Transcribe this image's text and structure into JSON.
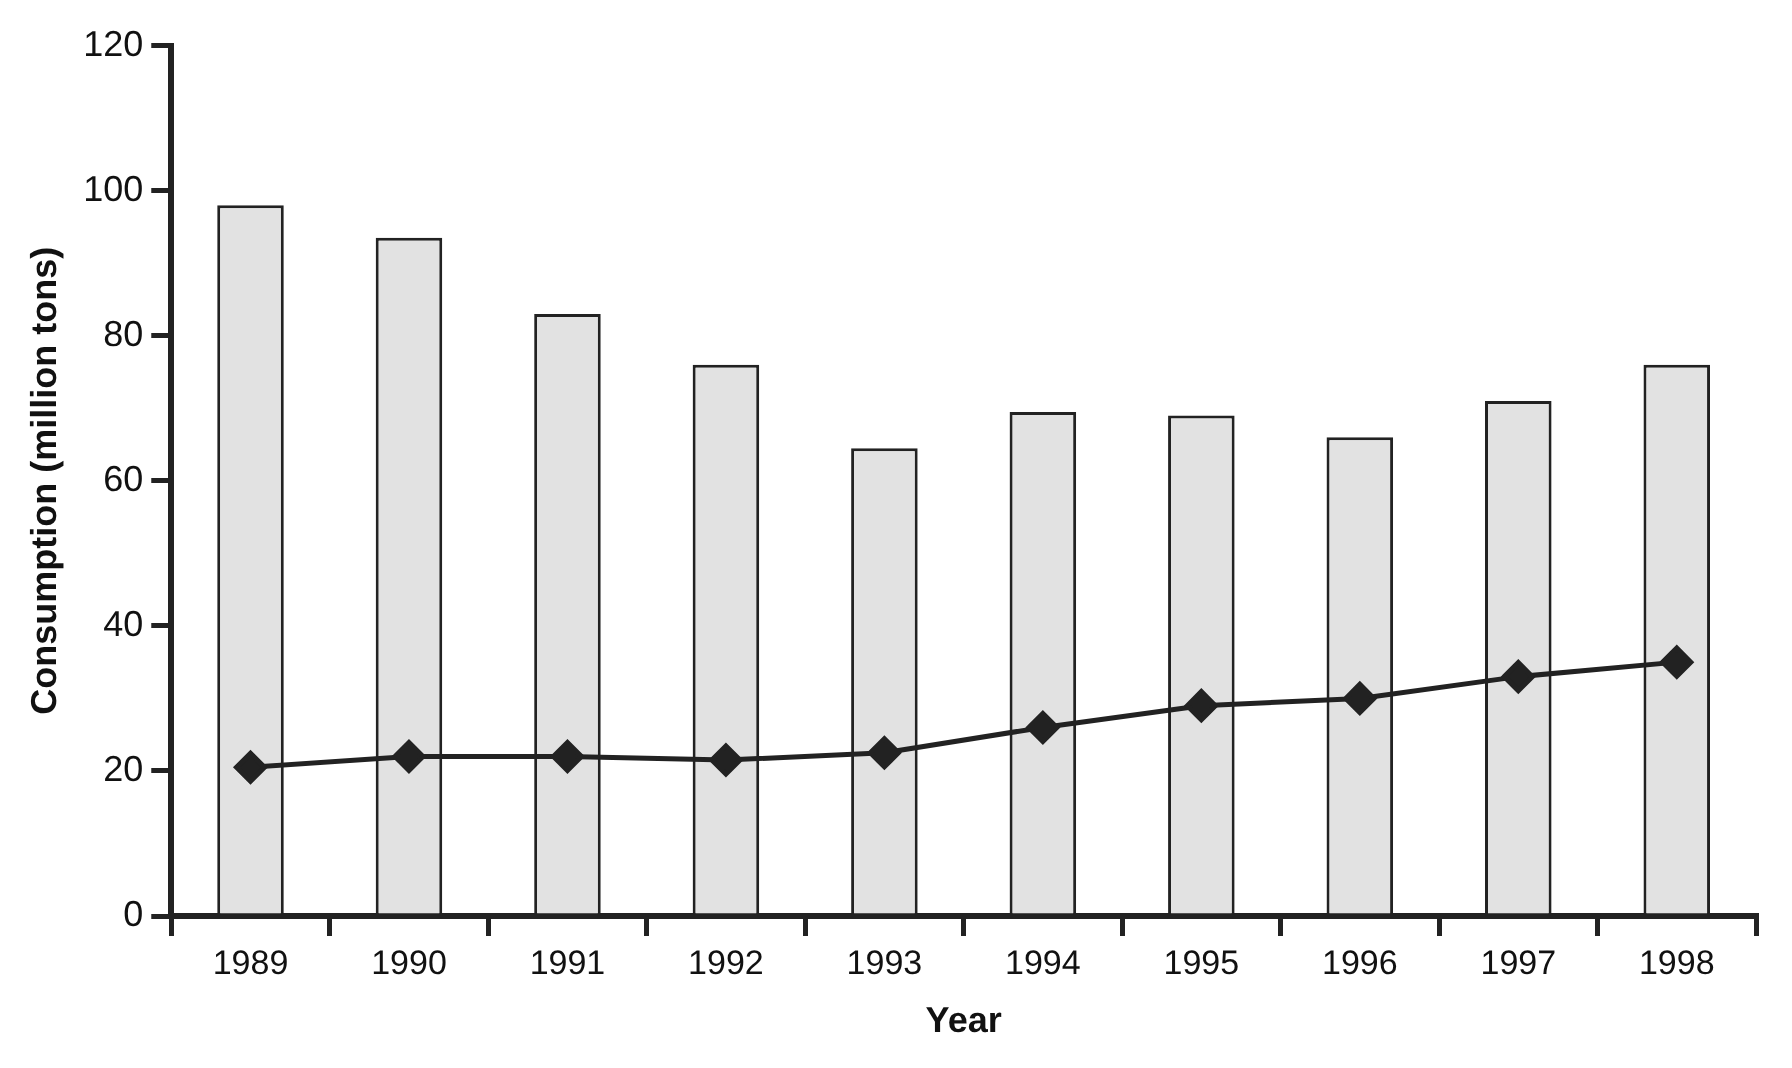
{
  "chart_data": {
    "type": "bar",
    "xlabel": "Year",
    "ylabel": "Consumption (million tons)",
    "categories": [
      "1989",
      "1990",
      "1991",
      "1992",
      "1993",
      "1994",
      "1995",
      "1996",
      "1997",
      "1998"
    ],
    "series": [
      {
        "color": "#e2e2e2",
        "values": [
          98,
          93.5,
          83,
          76,
          64.5,
          69.5,
          69,
          66,
          71,
          76
        ]
      },
      {
        "type": "line",
        "color": "#222222",
        "marker": "diamond",
        "values": [
          20.5,
          22,
          22,
          21.5,
          22.5,
          26,
          29,
          30,
          33,
          35
        ]
      }
    ],
    "ylim": [
      0,
      120
    ],
    "yticks": [
      0,
      20,
      40,
      60,
      80,
      100,
      120
    ],
    "grid": false,
    "legend": false
  }
}
